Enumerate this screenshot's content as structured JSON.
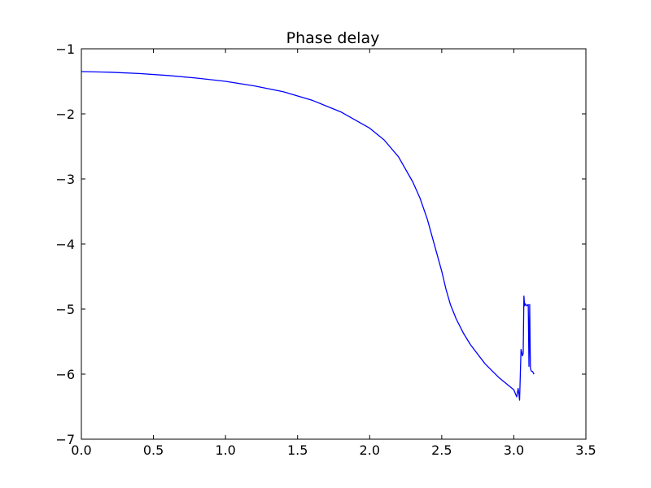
{
  "chart_data": {
    "type": "line",
    "title": "Phase delay",
    "xlabel": "",
    "ylabel": "",
    "xlim": [
      0.0,
      3.5
    ],
    "ylim": [
      -7,
      -1
    ],
    "grid": false,
    "x_ticks": [
      0.0,
      0.5,
      1.0,
      1.5,
      2.0,
      2.5,
      3.0,
      3.5
    ],
    "x_tick_labels": [
      "0.0",
      "0.5",
      "1.0",
      "1.5",
      "2.0",
      "2.5",
      "3.0",
      "3.5"
    ],
    "y_ticks": [
      -7,
      -6,
      -5,
      -4,
      -3,
      -2,
      -1
    ],
    "y_tick_labels": [
      "−7",
      "−6",
      "−5",
      "−4",
      "−3",
      "−2",
      "−1"
    ],
    "series": [
      {
        "color": "#0000ff",
        "x": [
          0.0,
          0.2,
          0.4,
          0.6,
          0.8,
          1.0,
          1.2,
          1.4,
          1.6,
          1.8,
          2.0,
          2.1,
          2.2,
          2.3,
          2.35,
          2.4,
          2.45,
          2.5,
          2.53,
          2.56,
          2.6,
          2.65,
          2.7,
          2.8,
          2.9,
          3.0,
          3.02,
          3.03,
          3.035,
          3.04,
          3.05,
          3.06,
          3.065,
          3.07,
          3.075,
          3.08,
          3.09,
          3.1,
          3.105,
          3.11,
          3.115,
          3.12,
          3.13,
          3.14
        ],
        "y": [
          -1.35,
          -1.36,
          -1.38,
          -1.41,
          -1.45,
          -1.5,
          -1.57,
          -1.66,
          -1.79,
          -1.97,
          -2.22,
          -2.4,
          -2.66,
          -3.05,
          -3.3,
          -3.62,
          -4.02,
          -4.42,
          -4.7,
          -4.93,
          -5.15,
          -5.37,
          -5.55,
          -5.84,
          -6.06,
          -6.24,
          -6.35,
          -6.22,
          -6.3,
          -6.4,
          -5.62,
          -5.72,
          -5.68,
          -4.8,
          -4.95,
          -4.92,
          -4.95,
          -4.93,
          -5.88,
          -4.93,
          -5.9,
          -5.95,
          -5.96,
          -6.0
        ]
      }
    ]
  }
}
